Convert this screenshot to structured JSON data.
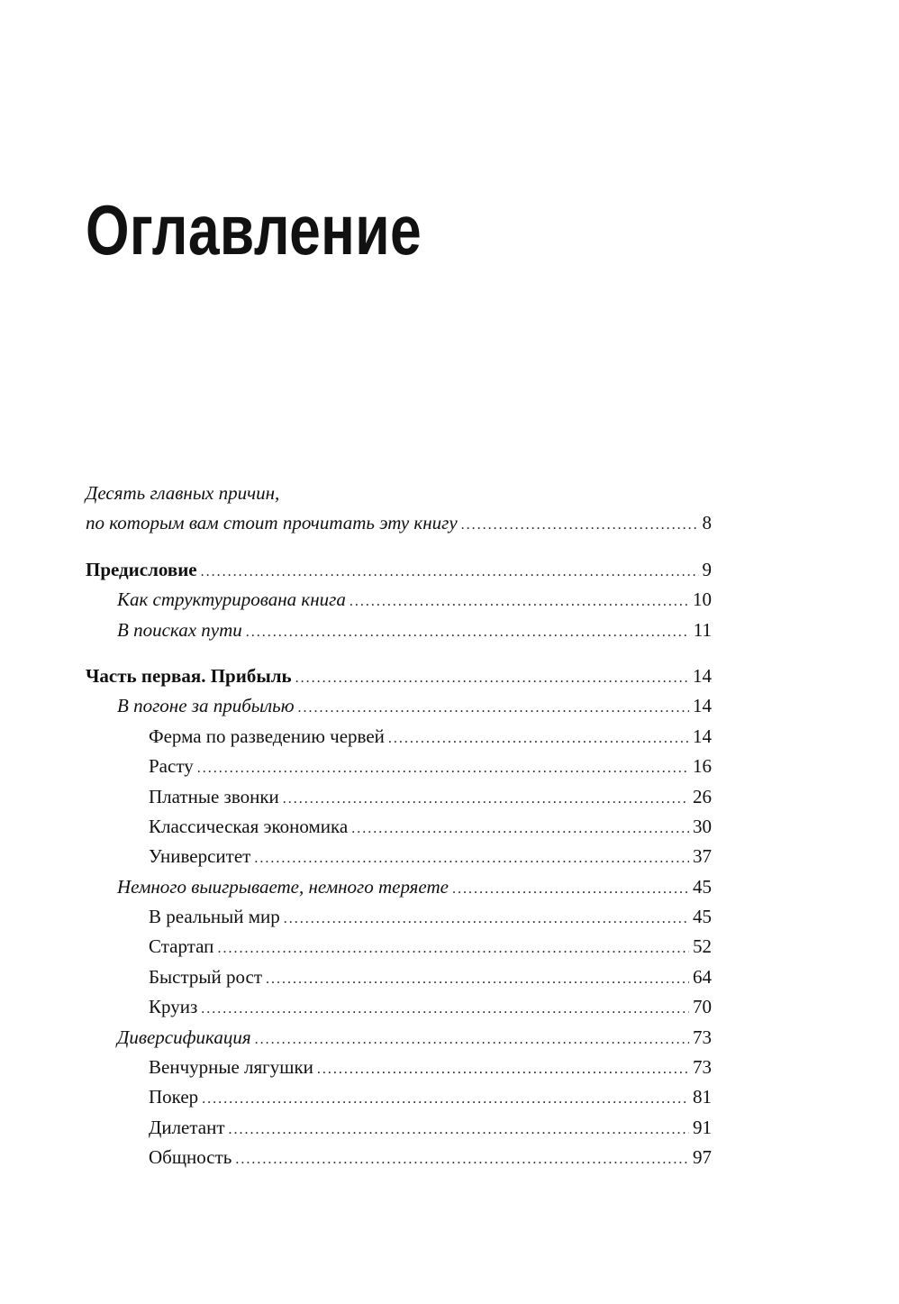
{
  "title": "Оглавление",
  "toc": [
    {
      "entries": [
        {
          "text": "Десять главных причин,",
          "page": "",
          "level": 0,
          "style": "italic",
          "leader": false
        },
        {
          "text": "по которым вам стоит прочитать эту книгу",
          "page": "8",
          "level": 0,
          "style": "italic",
          "leader": true
        }
      ]
    },
    {
      "entries": [
        {
          "text": "Предисловие",
          "page": "9",
          "level": 0,
          "style": "bold",
          "leader": true
        },
        {
          "text": "Как структурирована книга",
          "page": "10",
          "level": 1,
          "style": "italic",
          "leader": true
        },
        {
          "text": "В поисках пути",
          "page": "11",
          "level": 1,
          "style": "italic",
          "leader": true
        }
      ]
    },
    {
      "entries": [
        {
          "text": "Часть первая. Прибыль",
          "page": "14",
          "level": 0,
          "style": "bold",
          "leader": true
        },
        {
          "text": "В погоне за прибылью",
          "page": "14",
          "level": 1,
          "style": "italic",
          "leader": true
        },
        {
          "text": "Ферма по разведению червей",
          "page": "14",
          "level": 2,
          "style": "regular",
          "leader": true
        },
        {
          "text": "Расту",
          "page": "16",
          "level": 2,
          "style": "regular",
          "leader": true
        },
        {
          "text": "Платные звонки",
          "page": "26",
          "level": 2,
          "style": "regular",
          "leader": true
        },
        {
          "text": "Классическая экономика",
          "page": "30",
          "level": 2,
          "style": "regular",
          "leader": true
        },
        {
          "text": "Университет",
          "page": "37",
          "level": 2,
          "style": "regular",
          "leader": true
        },
        {
          "text": "Немного выигрываете, немного теряете",
          "page": "45",
          "level": 1,
          "style": "italic",
          "leader": true
        },
        {
          "text": "В реальный мир",
          "page": "45",
          "level": 2,
          "style": "regular",
          "leader": true
        },
        {
          "text": "Стартап",
          "page": "52",
          "level": 2,
          "style": "regular",
          "leader": true
        },
        {
          "text": "Быстрый рост",
          "page": "64",
          "level": 2,
          "style": "regular",
          "leader": true
        },
        {
          "text": "Круиз",
          "page": "70",
          "level": 2,
          "style": "regular",
          "leader": true
        },
        {
          "text": "Диверсификация",
          "page": "73",
          "level": 1,
          "style": "italic",
          "leader": true
        },
        {
          "text": "Венчурные лягушки",
          "page": "73",
          "level": 2,
          "style": "regular",
          "leader": true
        },
        {
          "text": "Покер",
          "page": "81",
          "level": 2,
          "style": "regular",
          "leader": true
        },
        {
          "text": "Дилетант",
          "page": "91",
          "level": 2,
          "style": "regular",
          "leader": true
        },
        {
          "text": "Общность",
          "page": "97",
          "level": 2,
          "style": "regular",
          "leader": true
        }
      ]
    }
  ]
}
